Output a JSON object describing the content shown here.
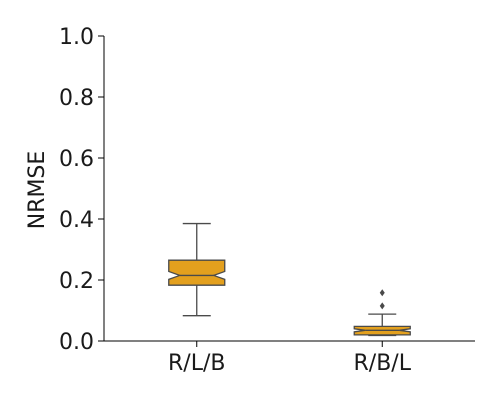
{
  "chart_data": {
    "type": "box",
    "title": "",
    "xlabel": "",
    "ylabel": "NRMSE",
    "ylim": [
      0,
      1.0
    ],
    "yticks": [
      "0.0",
      "0.2",
      "0.4",
      "0.6",
      "0.8",
      "1.0"
    ],
    "categories": [
      "R/L/B",
      "R/B/L"
    ],
    "notched": true,
    "box_color": "#E3A01E",
    "edge_color": "#4a4a4a",
    "grid": false,
    "boxes": [
      {
        "label": "R/L/B",
        "whisker_low": 0.083,
        "q1": 0.183,
        "median": 0.215,
        "q3": 0.265,
        "whisker_high": 0.385,
        "notch_low": 0.202,
        "notch_high": 0.228,
        "outliers": []
      },
      {
        "label": "R/B/L",
        "whisker_low": 0.018,
        "q1": 0.02,
        "median": 0.035,
        "q3": 0.048,
        "whisker_high": 0.088,
        "notch_low": 0.03,
        "notch_high": 0.04,
        "outliers": [
          0.115,
          0.158
        ]
      }
    ]
  }
}
